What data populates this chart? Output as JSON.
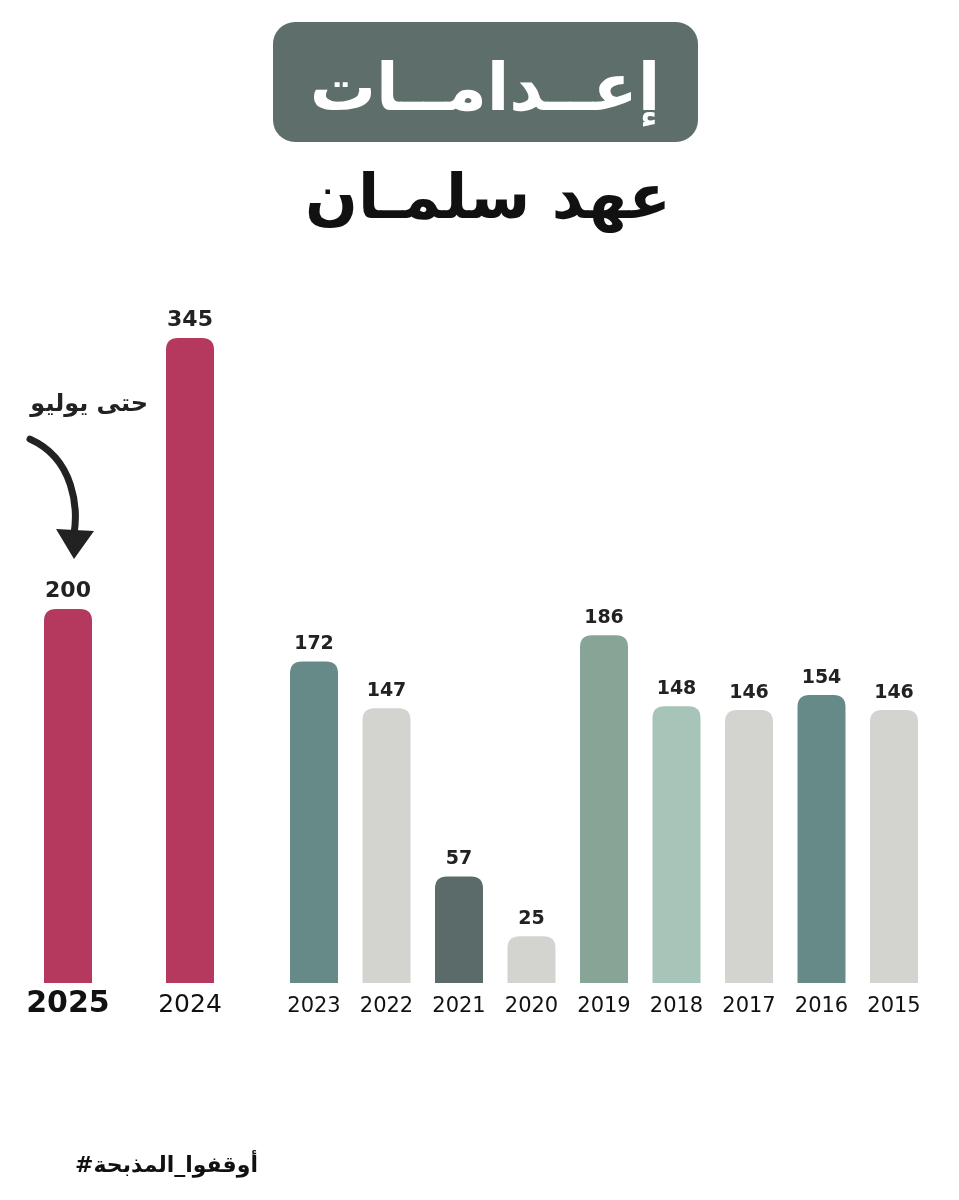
{
  "chart_data": {
    "type": "bar",
    "title": "إعــدامــات",
    "subtitle": "عهد سلمـان",
    "categories": [
      "2025",
      "2024",
      "2023",
      "2022",
      "2021",
      "2020",
      "2019",
      "2018",
      "2017",
      "2016",
      "2015"
    ],
    "values": [
      200,
      345,
      172,
      147,
      57,
      25,
      186,
      148,
      146,
      154,
      146
    ],
    "colors": [
      "#b5395f",
      "#b5395f",
      "#668a87",
      "#d3d4cf",
      "#5a6b6a",
      "#d3d4cf",
      "#86a597",
      "#a6c4b8",
      "#d3d4cf",
      "#668a87",
      "#d3d4cf"
    ],
    "data_labels": true,
    "annotations": [
      "حتى يوليو",
      "#أوقفوا_المذبحة"
    ]
  }
}
